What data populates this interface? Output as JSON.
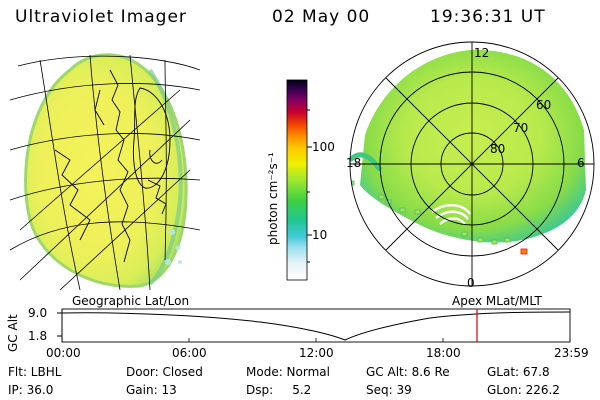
{
  "header": {
    "instrument": "Ultraviolet Imager",
    "date": "02 May 00",
    "time": "19:36:31 UT"
  },
  "colorbar": {
    "unit_label": "photon cm⁻²s⁻¹",
    "ticks": [
      "100",
      "10"
    ],
    "colors": [
      "#000020",
      "#240040",
      "#4a0060",
      "#80006a",
      "#b0004a",
      "#d80018",
      "#f04000",
      "#ff8c00",
      "#ffc800",
      "#f0f000",
      "#b8f000",
      "#60e800",
      "#20d040",
      "#20c8a0",
      "#40c8e0",
      "#a0e0f0",
      "#e8f4f8",
      "#ffffff"
    ]
  },
  "left_panel": {
    "label": "Geographic Lat/Lon"
  },
  "right_panel": {
    "label": "Apex MLat/MLT",
    "mlt_labels": {
      "top": "12",
      "left": "18",
      "right": "6",
      "bottom": "0"
    },
    "mlat_labels": [
      "60",
      "70",
      "80"
    ]
  },
  "altitude_plot": {
    "ylabel": "GC Alt",
    "ytick_top": "9.0",
    "ytick_bottom": "1.8",
    "xticks": [
      "00:00",
      "06:00",
      "12:00",
      "18:00",
      "23:59"
    ],
    "marker_color": "#e00000"
  },
  "footer": {
    "row1": {
      "flt": "Flt: LBHL",
      "door": "Door: Closed",
      "mode": "Mode: Normal",
      "gcalt": "GC Alt: 8.6 Re",
      "glat": "GLat:  67.8"
    },
    "row2": {
      "ip": "IP: 36.0",
      "gain": "Gain: 13",
      "dsp": "Dsp:     5.2",
      "seq": "Seq: 39",
      "glon": "GLon: 226.2"
    }
  }
}
